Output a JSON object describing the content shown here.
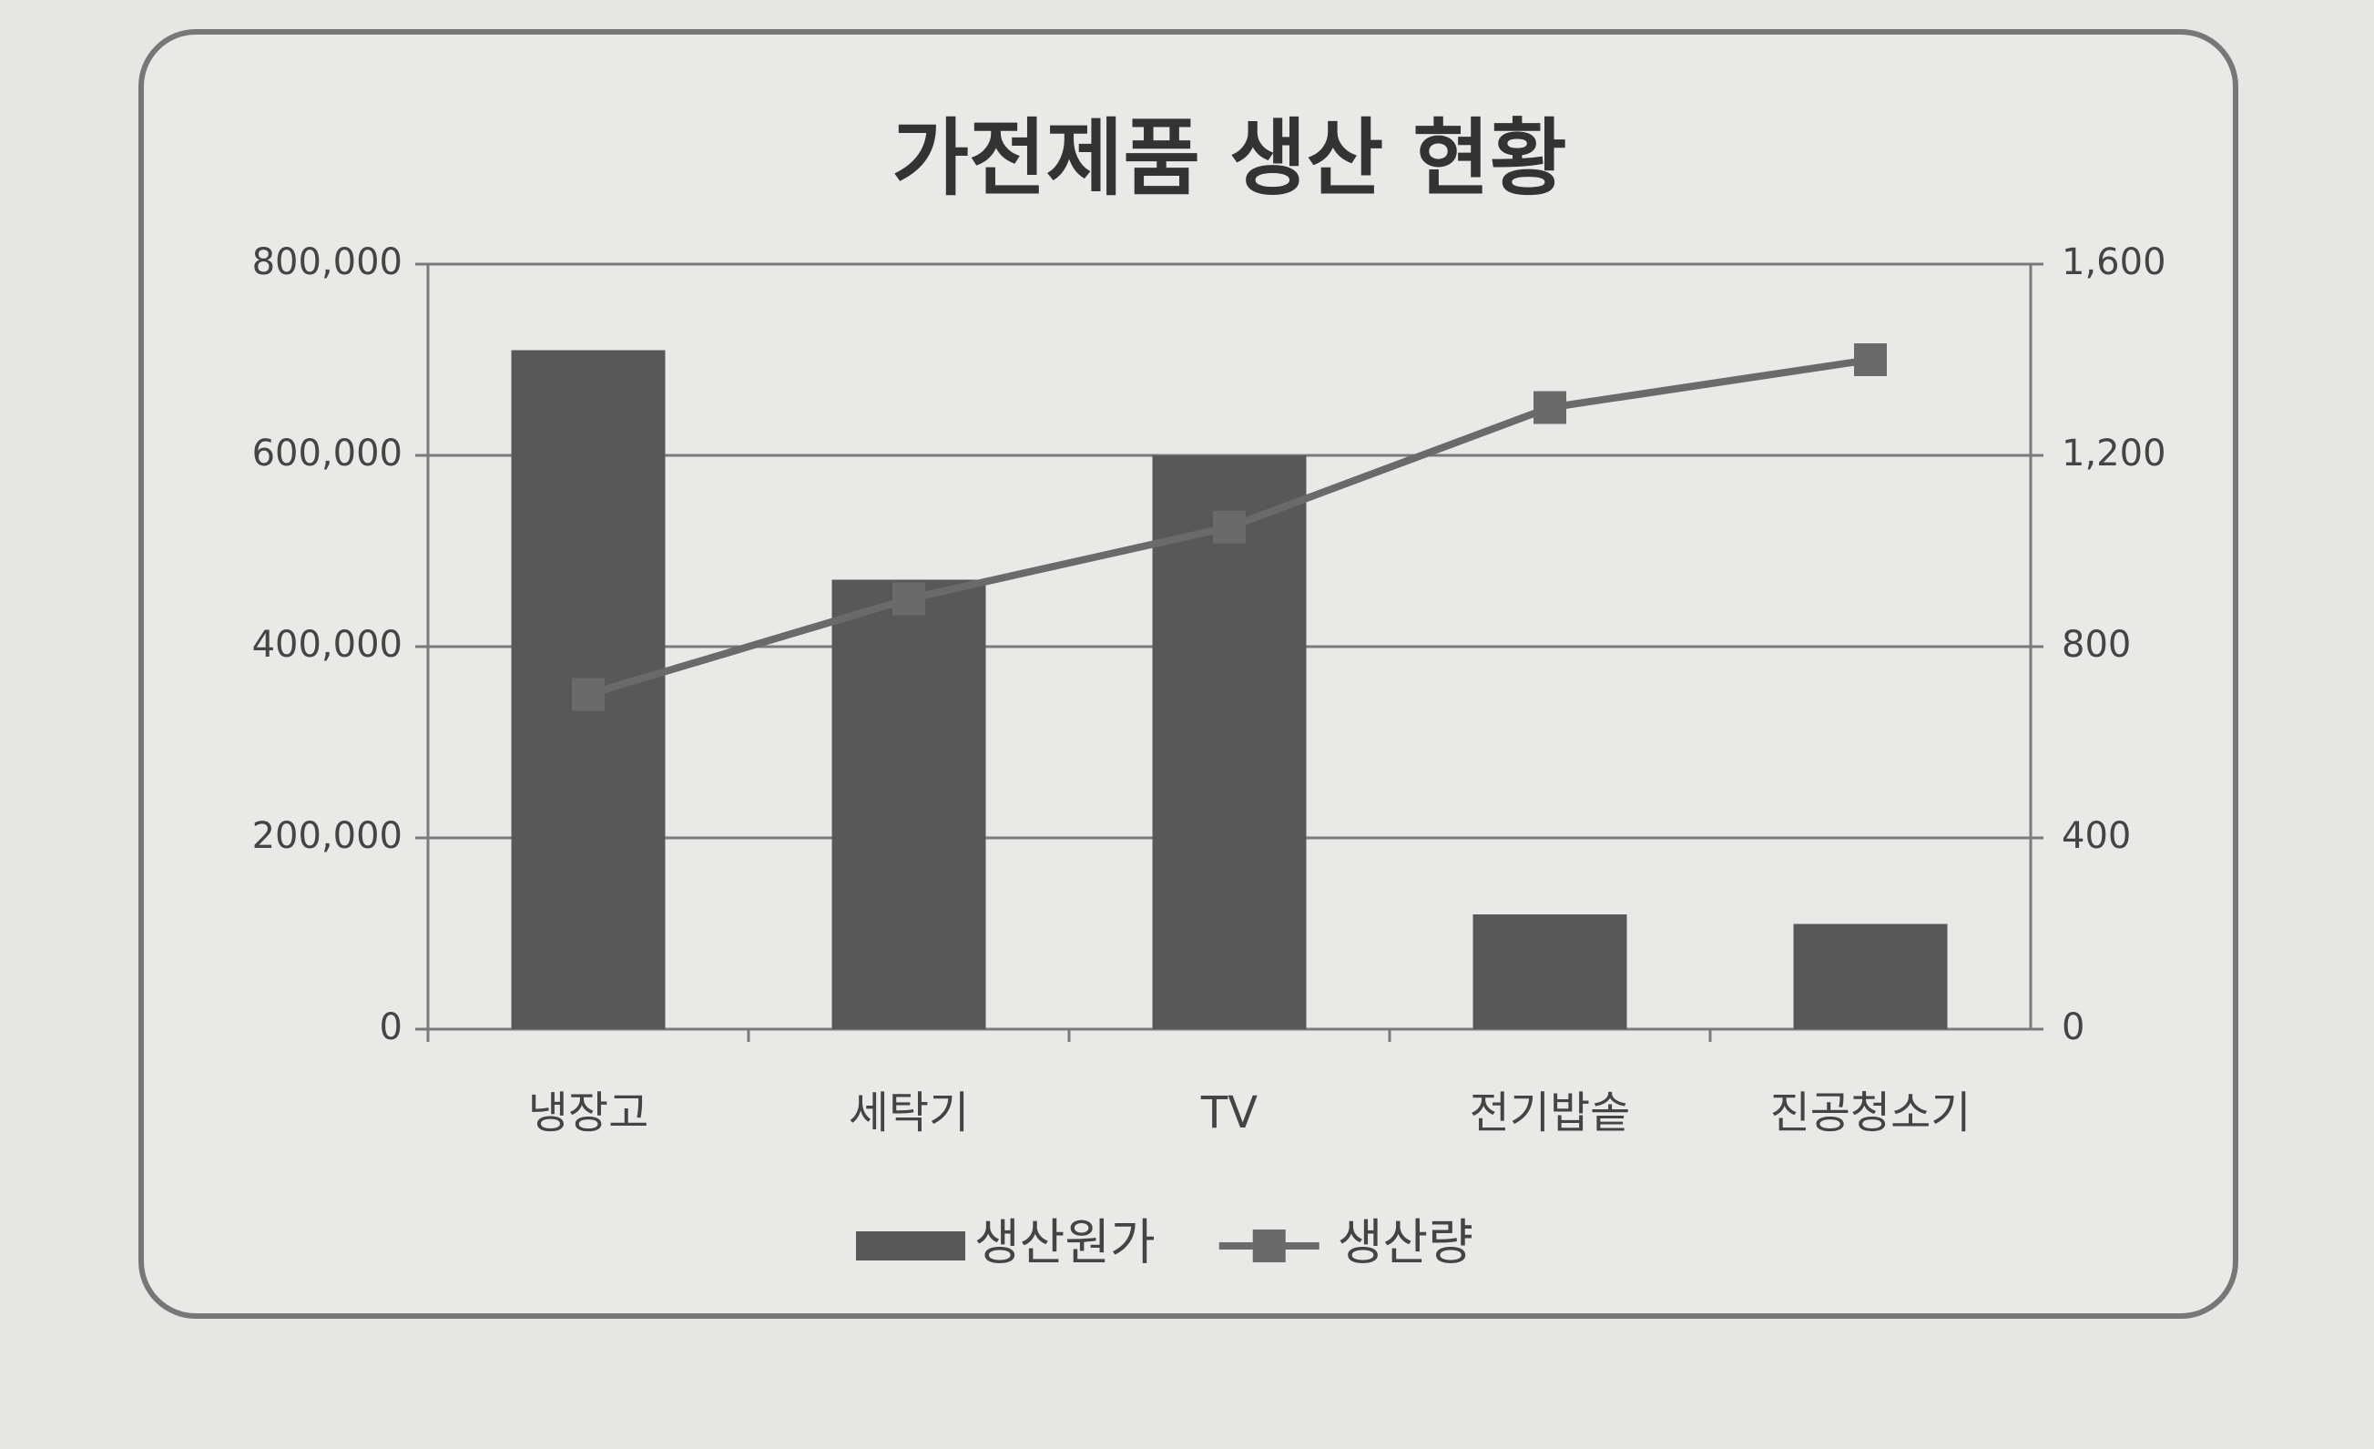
{
  "chart_data": {
    "type": "bar",
    "title": "가전제품 생산 현황",
    "categories": [
      "냉장고",
      "세탁기",
      "TV",
      "전기밥솥",
      "진공청소기"
    ],
    "series": [
      {
        "name": "생산원가",
        "type": "bar",
        "color": "#585858",
        "values": [
          710000,
          470000,
          600000,
          120000,
          110000
        ]
      },
      {
        "name": "생산량",
        "type": "line",
        "axis": "y2",
        "color": "#6a6a6a",
        "values": [
          700,
          900,
          1050,
          1300,
          1400
        ]
      }
    ],
    "ylim": [
      0,
      800000
    ],
    "yticks": [
      0,
      {
        "value": 200000,
        "label": "200,000"
      },
      {
        "value": 400000,
        "label": "400,000"
      },
      {
        "value": 600000,
        "label": "600,000"
      },
      {
        "value": 800000,
        "label": "800,000"
      }
    ],
    "y2lim": [
      0,
      1600
    ],
    "y2ticks": [
      0,
      400,
      800,
      {
        "value": 1200,
        "label": "1,200"
      },
      {
        "value": 1600,
        "label": "1,600"
      }
    ],
    "grid": true,
    "legend": "bottom"
  }
}
